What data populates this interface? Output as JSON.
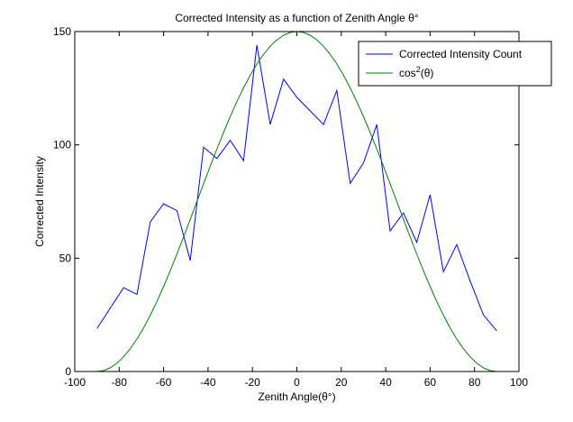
{
  "chart_data": {
    "type": "line",
    "title_main": "Corrected Intensity as a function of Zenith Angle θ°",
    "xlabel": "Zenith Angle(θ°)",
    "ylabel": "Corrected Intensity",
    "xlim": [
      -100,
      100
    ],
    "ylim": [
      0,
      150
    ],
    "xticks": [
      -100,
      -80,
      -60,
      -40,
      -20,
      0,
      20,
      40,
      60,
      80,
      100
    ],
    "yticks": [
      0,
      50,
      100,
      150
    ],
    "grid": false,
    "legend_placement": "top-right",
    "series": [
      {
        "name": "Corrected Intensity Count",
        "color": "#0000ff",
        "x": [
          -90,
          -84,
          -78,
          -72,
          -66,
          -60,
          -54,
          -48,
          -42,
          -36,
          -30,
          -24,
          -18,
          -12,
          -6,
          0,
          6,
          12,
          18,
          24,
          30,
          36,
          42,
          48,
          54,
          60,
          66,
          72,
          78,
          84,
          90
        ],
        "y": [
          19,
          28,
          37,
          34,
          66,
          74,
          71,
          49,
          99,
          94,
          102,
          93,
          144,
          109,
          129,
          121,
          115,
          109,
          124,
          83,
          92,
          109,
          62,
          70,
          57,
          78,
          44,
          56,
          40,
          25,
          18
        ]
      },
      {
        "name": "cos²(θ)",
        "legend_base": "cos",
        "legend_sup": "2",
        "legend_arg": "(θ)",
        "color": "#008000",
        "amplitude": 150,
        "x_range": [
          -90,
          90
        ],
        "step": 3
      }
    ]
  }
}
